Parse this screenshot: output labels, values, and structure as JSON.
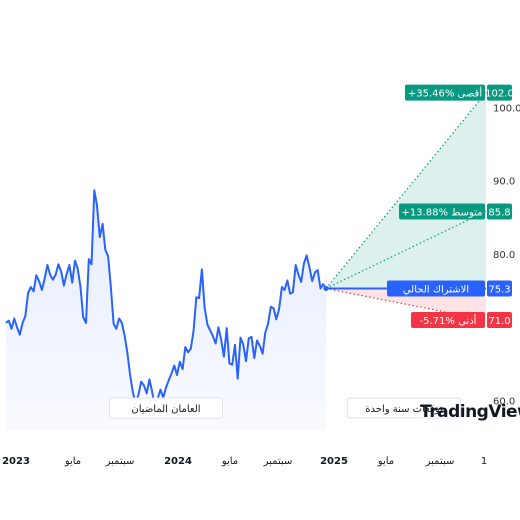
{
  "chart_data": {
    "type": "line",
    "title": "",
    "xlabel": "",
    "ylabel": "",
    "x_ticks": [
      {
        "label": "2023",
        "bold": true
      },
      {
        "label": "مايو",
        "bold": false
      },
      {
        "label": "سبتمبر",
        "bold": false
      },
      {
        "label": "2024",
        "bold": true
      },
      {
        "label": "مايو",
        "bold": false
      },
      {
        "label": "سبتمبر",
        "bold": false
      },
      {
        "label": "2025",
        "bold": true
      },
      {
        "label": "مايو",
        "bold": false
      },
      {
        "label": "سبتمبر",
        "bold": false
      },
      {
        "label": "1",
        "bold": false
      }
    ],
    "y_ticks": [
      "100.0",
      "90.0",
      "80.0",
      "60.0"
    ],
    "ylim": [
      56,
      107
    ],
    "history": {
      "name": "",
      "start": "2023-01",
      "end": "2024-12",
      "values": [
        70.6,
        70.9,
        69.8,
        71.2,
        70.0,
        69.0,
        70.6,
        71.5,
        74.7,
        75.5,
        74.9,
        77.1,
        76.3,
        75.1,
        76.6,
        78.5,
        77.2,
        76.5,
        77.2,
        78.6,
        77.6,
        75.7,
        77.3,
        78.5,
        76.1,
        79.1,
        78.0,
        75.5,
        71.4,
        70.6,
        79.3,
        78.6,
        88.7,
        86.6,
        82.3,
        84.1,
        80.6,
        79.7,
        75.6,
        70.5,
        69.8,
        71.2,
        70.6,
        68.9,
        66.5,
        63.5,
        61.1,
        59.7,
        60.8,
        62.6,
        62.1,
        61.0,
        62.9,
        61.2,
        58.9,
        60.3,
        61.5,
        60.4,
        61.8,
        62.8,
        63.7,
        64.8,
        63.5,
        65.3,
        64.3,
        67.3,
        66.6,
        67.1,
        69.6,
        74.1,
        74.0,
        77.9,
        72.7,
        70.4,
        69.6,
        68.8,
        67.8,
        70.0,
        68.3,
        66.0,
        69.9,
        65.1,
        64.9,
        67.6,
        63.0,
        68.6,
        67.7,
        65.4,
        68.5,
        68.7,
        65.8,
        68.2,
        67.5,
        66.4,
        69.3,
        70.5,
        72.8,
        72.6,
        71.1,
        72.5,
        75.5,
        75.1,
        76.4,
        74.6,
        74.8,
        78.5,
        77.2,
        76.2,
        78.7,
        79.8,
        78.2,
        76.3,
        77.5,
        77.8,
        75.3,
        75.9,
        75.3
      ]
    },
    "forecast": {
      "current": {
        "value": 75.3,
        "label": "الاشتراك الحالي",
        "color": "#2962ff"
      },
      "high": {
        "value": 102.0,
        "label": "+35.46% أقصى",
        "color": "#089981"
      },
      "avg": {
        "value": 85.8,
        "label": "+13.88% متوسط",
        "color": "#089981"
      },
      "low": {
        "value": 71.0,
        "label": "-5.71% أدنى",
        "color": "#f23645"
      }
    },
    "annotations": {
      "past": "العامان الماضيان",
      "future": "توقعات سنة واحدة"
    },
    "logo": "TradingView"
  }
}
